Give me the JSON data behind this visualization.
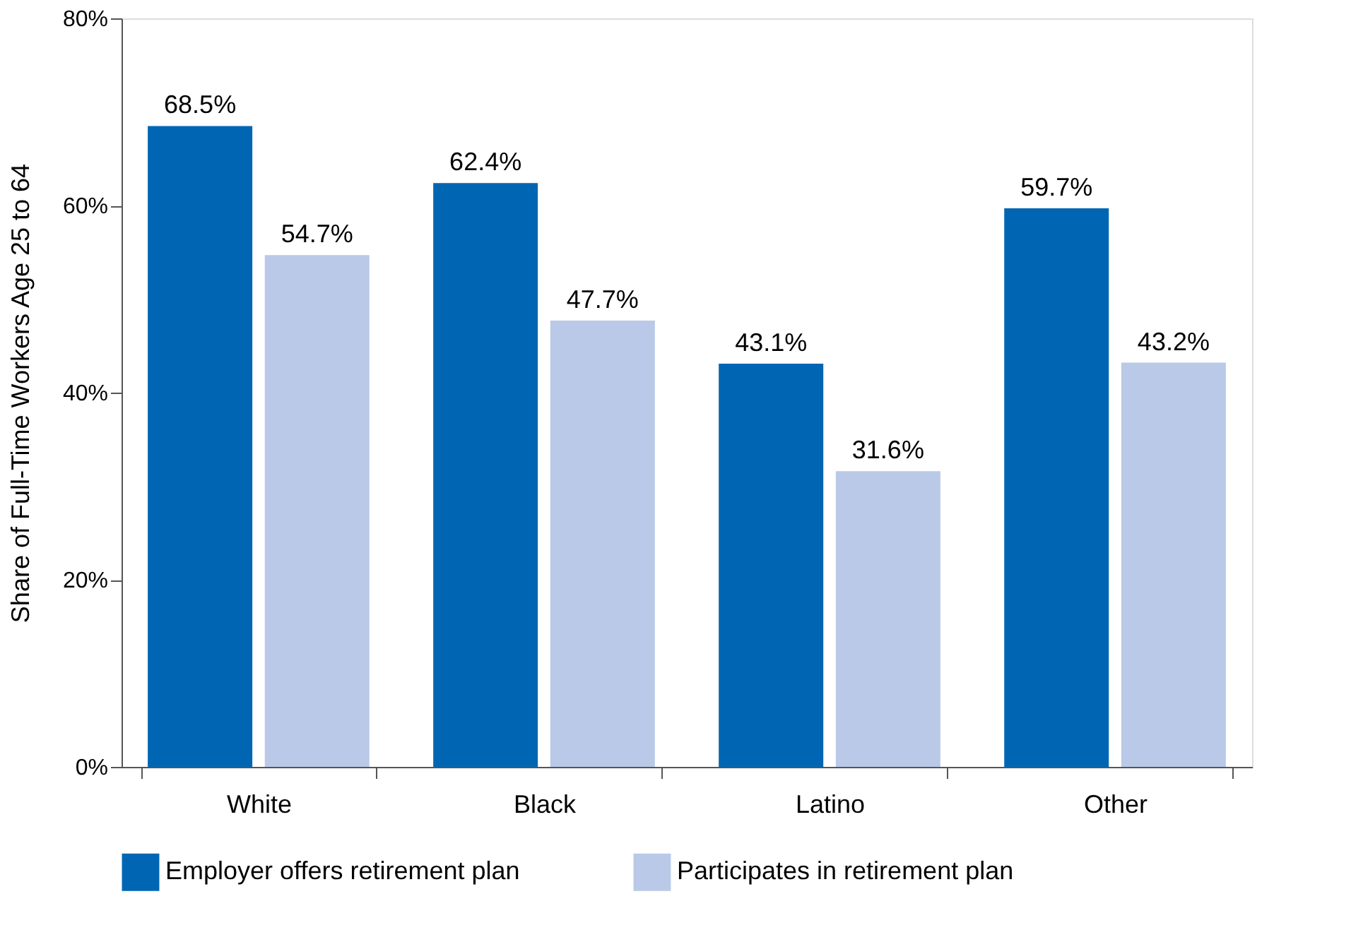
{
  "chart_data": {
    "type": "bar",
    "ylabel": "Share of Full-Time Workers Age 25 to 64",
    "categories": [
      "White",
      "Black",
      "Latino",
      "Other"
    ],
    "series": [
      {
        "name": "Employer offers retirement plan",
        "color": "#0066b3",
        "values": [
          68.5,
          62.4,
          43.1,
          59.7
        ],
        "value_labels": [
          "68.5%",
          "62.4%",
          "43.1%",
          "59.7%"
        ]
      },
      {
        "name": "Participates in retirement plan",
        "color": "#b9c9e7",
        "values": [
          54.7,
          47.7,
          31.6,
          43.2
        ],
        "value_labels": [
          "54.7%",
          "47.7%",
          "31.6%",
          "43.2%"
        ]
      }
    ],
    "ylim": [
      0,
      80
    ],
    "yticks": [
      {
        "value": 0,
        "label": "0%"
      },
      {
        "value": 20,
        "label": "20%"
      },
      {
        "value": 40,
        "label": "40%"
      },
      {
        "value": 60,
        "label": "60%"
      },
      {
        "value": 80,
        "label": "80%"
      }
    ],
    "grid": false,
    "legend": "bottom"
  }
}
